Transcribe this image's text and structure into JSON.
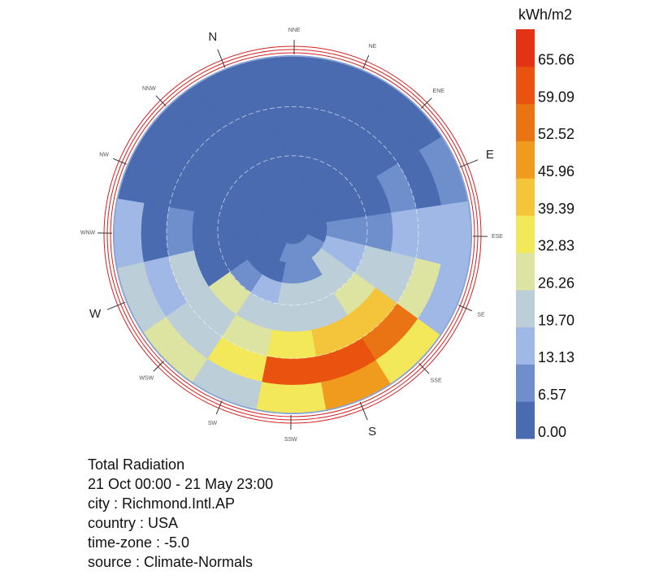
{
  "chart_data": {
    "type": "heatmap",
    "subtype": "radiation-sky-dome",
    "unit": "kWh/m2",
    "legend": {
      "title": "kWh/m2",
      "ticks": [
        "0.00",
        "6.57",
        "13.13",
        "19.70",
        "26.26",
        "32.83",
        "39.39",
        "45.96",
        "52.52",
        "59.09",
        "65.66"
      ],
      "colors": [
        "#4a6bb0",
        "#6e8ecc",
        "#a0b8e6",
        "#bccfd9",
        "#dde3a0",
        "#f3e75a",
        "#f4c43a",
        "#f09b1e",
        "#ea7414",
        "#e9520f",
        "#e43214"
      ],
      "min": 0,
      "max": 72.2,
      "placement": "right"
    },
    "directions": [
      "N",
      "NNE",
      "NE",
      "ENE",
      "E",
      "ESE",
      "SE",
      "SSE",
      "S",
      "SSW",
      "SW",
      "WSW",
      "W",
      "WNW",
      "NW",
      "NNW"
    ],
    "major_directions": [
      "N",
      "E",
      "S",
      "W"
    ],
    "rings": [
      {
        "altitude_band": "0-12",
        "values": [
          2,
          2,
          2,
          3,
          8,
          15,
          19,
          35,
          48,
          36,
          26,
          28,
          24,
          14,
          4,
          2
        ]
      },
      {
        "altitude_band": "12-24",
        "values": [
          2,
          2,
          2,
          3,
          5,
          18,
          30,
          58,
          64,
          62,
          36,
          22,
          15,
          6,
          3,
          2
        ]
      },
      {
        "altitude_band": "24-36",
        "values": [
          2,
          2,
          2,
          3,
          8,
          15,
          25,
          40,
          42,
          36,
          28,
          25,
          24,
          7,
          3,
          2
        ]
      },
      {
        "altitude_band": "36-48",
        "values": [
          2,
          2,
          3,
          3,
          4,
          9,
          22,
          27,
          25,
          21,
          24,
          27,
          6,
          3,
          2,
          2
        ]
      },
      {
        "altitude_band": "48-60",
        "values": [
          2,
          2,
          3,
          3,
          4,
          10,
          17,
          24,
          22,
          20,
          15,
          8,
          4,
          3,
          2,
          2
        ]
      },
      {
        "altitude_band": "60-72",
        "values": [
          3,
          3,
          3,
          3,
          4,
          12,
          14,
          22,
          10,
          8,
          6,
          5,
          4,
          3,
          3,
          3
        ]
      },
      {
        "altitude_band": "72-84",
        "values": [
          3,
          3,
          4,
          5,
          6,
          7,
          8,
          8,
          6,
          5,
          4,
          3
        ]
      },
      {
        "altitude_band": "84-90",
        "values": [
          4
        ]
      }
    ]
  },
  "info": {
    "title": "Total Radiation",
    "period": "21 Oct 00:00 - 21 May 23:00",
    "city": "city : Richmond.Intl.AP",
    "country": "country : USA",
    "timezone": "time-zone : -5.0",
    "source": "source : Climate-Normals"
  }
}
